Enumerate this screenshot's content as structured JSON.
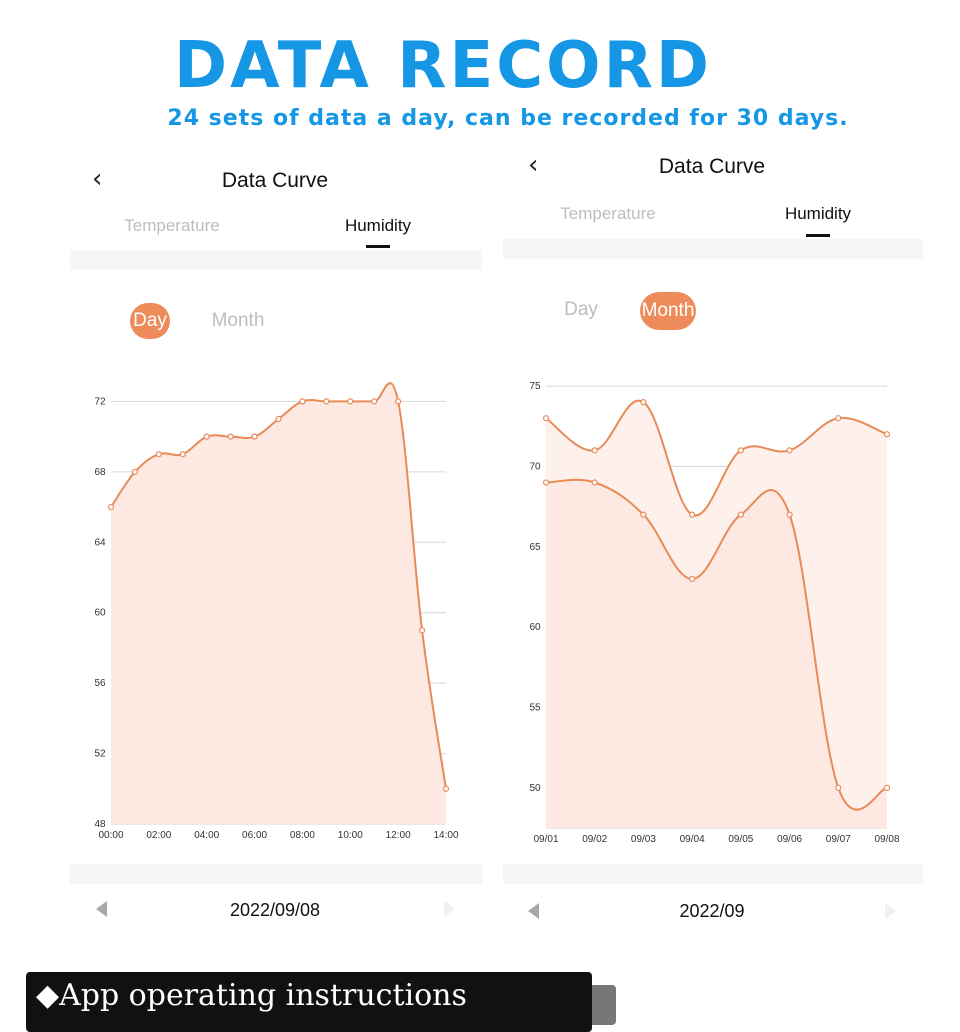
{
  "banner": {
    "title": "DATA RECORD",
    "subtitle": "24 sets of data a day, can be recorded for 30 days."
  },
  "left": {
    "header": {
      "back_icon": "chevron-left-icon",
      "title": "Data Curve"
    },
    "tabs": [
      {
        "label": "Temperature",
        "active": false
      },
      {
        "label": "Humidity",
        "active": true
      }
    ],
    "range_toggle": [
      {
        "label": "Day",
        "selected": true
      },
      {
        "label": "Month",
        "selected": false
      }
    ],
    "date": "2022/09/08",
    "prev_icon": "triangle-left-icon",
    "next_icon": "triangle-right-icon"
  },
  "right": {
    "header": {
      "back_icon": "chevron-left-icon",
      "title": "Data Curve"
    },
    "tabs": [
      {
        "label": "Temperature",
        "active": false
      },
      {
        "label": "Humidity",
        "active": true
      }
    ],
    "range_toggle": [
      {
        "label": "Day",
        "selected": false
      },
      {
        "label": "Month",
        "selected": true
      }
    ],
    "date": "2022/09",
    "prev_icon": "triangle-left-icon",
    "next_icon": "triangle-right-icon"
  },
  "footer": {
    "label": "◆App operating instructions"
  },
  "colors": {
    "accent": "#ee8b5a",
    "line": "#e78b58",
    "fill": "#fde9e1",
    "fill_light": "#fef1eb",
    "banner_blue": "#1597e5"
  },
  "chart_data": [
    {
      "type": "area",
      "x": [
        "00:00",
        "01:00",
        "02:00",
        "03:00",
        "04:00",
        "05:00",
        "06:00",
        "07:00",
        "08:00",
        "09:00",
        "10:00",
        "11:00",
        "12:00",
        "13:00",
        "14:00"
      ],
      "x_tick_labels": [
        "00:00",
        "02:00",
        "04:00",
        "06:00",
        "08:00",
        "10:00",
        "12:00",
        "14:00"
      ],
      "series": [
        {
          "values": [
            66,
            68,
            69,
            69,
            70,
            70,
            70,
            71,
            72,
            72,
            72,
            72,
            72,
            59,
            50
          ]
        }
      ],
      "y_ticks": [
        48,
        52,
        56,
        60,
        64,
        68,
        72
      ],
      "ylim": [
        48,
        73.5
      ],
      "grid": true
    },
    {
      "type": "area",
      "x": [
        "09/01",
        "09/02",
        "09/03",
        "09/04",
        "09/05",
        "09/06",
        "09/07",
        "09/08"
      ],
      "x_tick_labels": [
        "09/01",
        "09/02",
        "09/03",
        "09/04",
        "09/05",
        "09/06",
        "09/07",
        "09/08"
      ],
      "series": [
        {
          "values": [
            73,
            71,
            74,
            67,
            71,
            71,
            73,
            72
          ]
        },
        {
          "values": [
            69,
            69,
            67,
            63,
            67,
            67,
            50,
            50
          ]
        }
      ],
      "y_ticks": [
        50,
        55,
        60,
        65,
        70,
        75
      ],
      "ylim": [
        47.5,
        76
      ],
      "grid": true
    }
  ]
}
